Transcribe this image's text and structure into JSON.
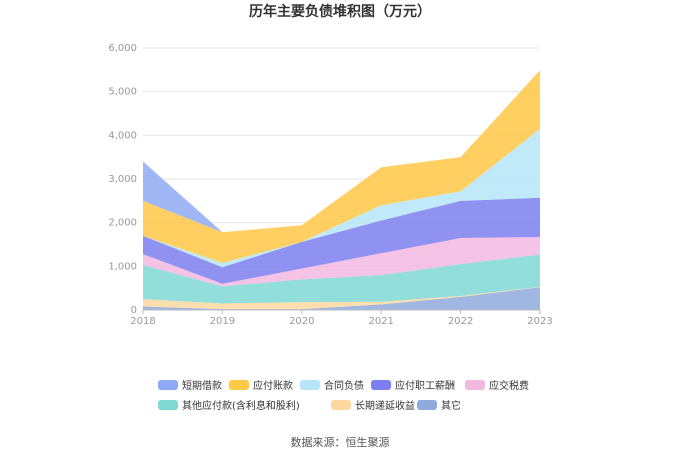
{
  "chart_data": {
    "type": "area",
    "stacked": true,
    "title": "历年主要负债堆积图（万元）",
    "x": [
      "2018",
      "2019",
      "2020",
      "2021",
      "2022",
      "2023"
    ],
    "yticks": [
      "0",
      "1,000",
      "2,000",
      "3,000",
      "4,000",
      "5,000",
      "6,000"
    ],
    "ylim": [
      0,
      6000
    ],
    "grid": true,
    "legend_position": "bottom",
    "series": [
      {
        "name": "其它",
        "color": "#8faadc",
        "values": [
          80,
          20,
          20,
          130,
          300,
          520
        ]
      },
      {
        "name": "长期递延收益",
        "color": "#ffd8a0",
        "values": [
          170,
          130,
          160,
          60,
          20,
          10
        ]
      },
      {
        "name": "其他应付款(含利息和股利)",
        "color": "#7fd8d3",
        "values": [
          780,
          390,
          520,
          610,
          730,
          740
        ]
      },
      {
        "name": "应交税费",
        "color": "#f2b9e0",
        "values": [
          250,
          60,
          250,
          500,
          600,
          400
        ]
      },
      {
        "name": "应付职工薪酬",
        "color": "#7d7ff0",
        "values": [
          420,
          380,
          610,
          750,
          850,
          900
        ]
      },
      {
        "name": "合同负债",
        "color": "#b5e6f8",
        "values": [
          0,
          100,
          0,
          350,
          220,
          1580
        ]
      },
      {
        "name": "应付账款",
        "color": "#ffc845",
        "values": [
          800,
          700,
          380,
          870,
          780,
          1340
        ]
      },
      {
        "name": "短期借款",
        "color": "#8faaf5",
        "values": [
          900,
          0,
          0,
          0,
          0,
          0
        ]
      }
    ],
    "legend_order": [
      "短期借款",
      "应付账款",
      "合同负债",
      "应付职工薪酬",
      "应交税费",
      "其他应付款(含利息和股利)",
      "长期递延收益",
      "其它"
    ]
  },
  "source_text": "数据来源：恒生聚源"
}
